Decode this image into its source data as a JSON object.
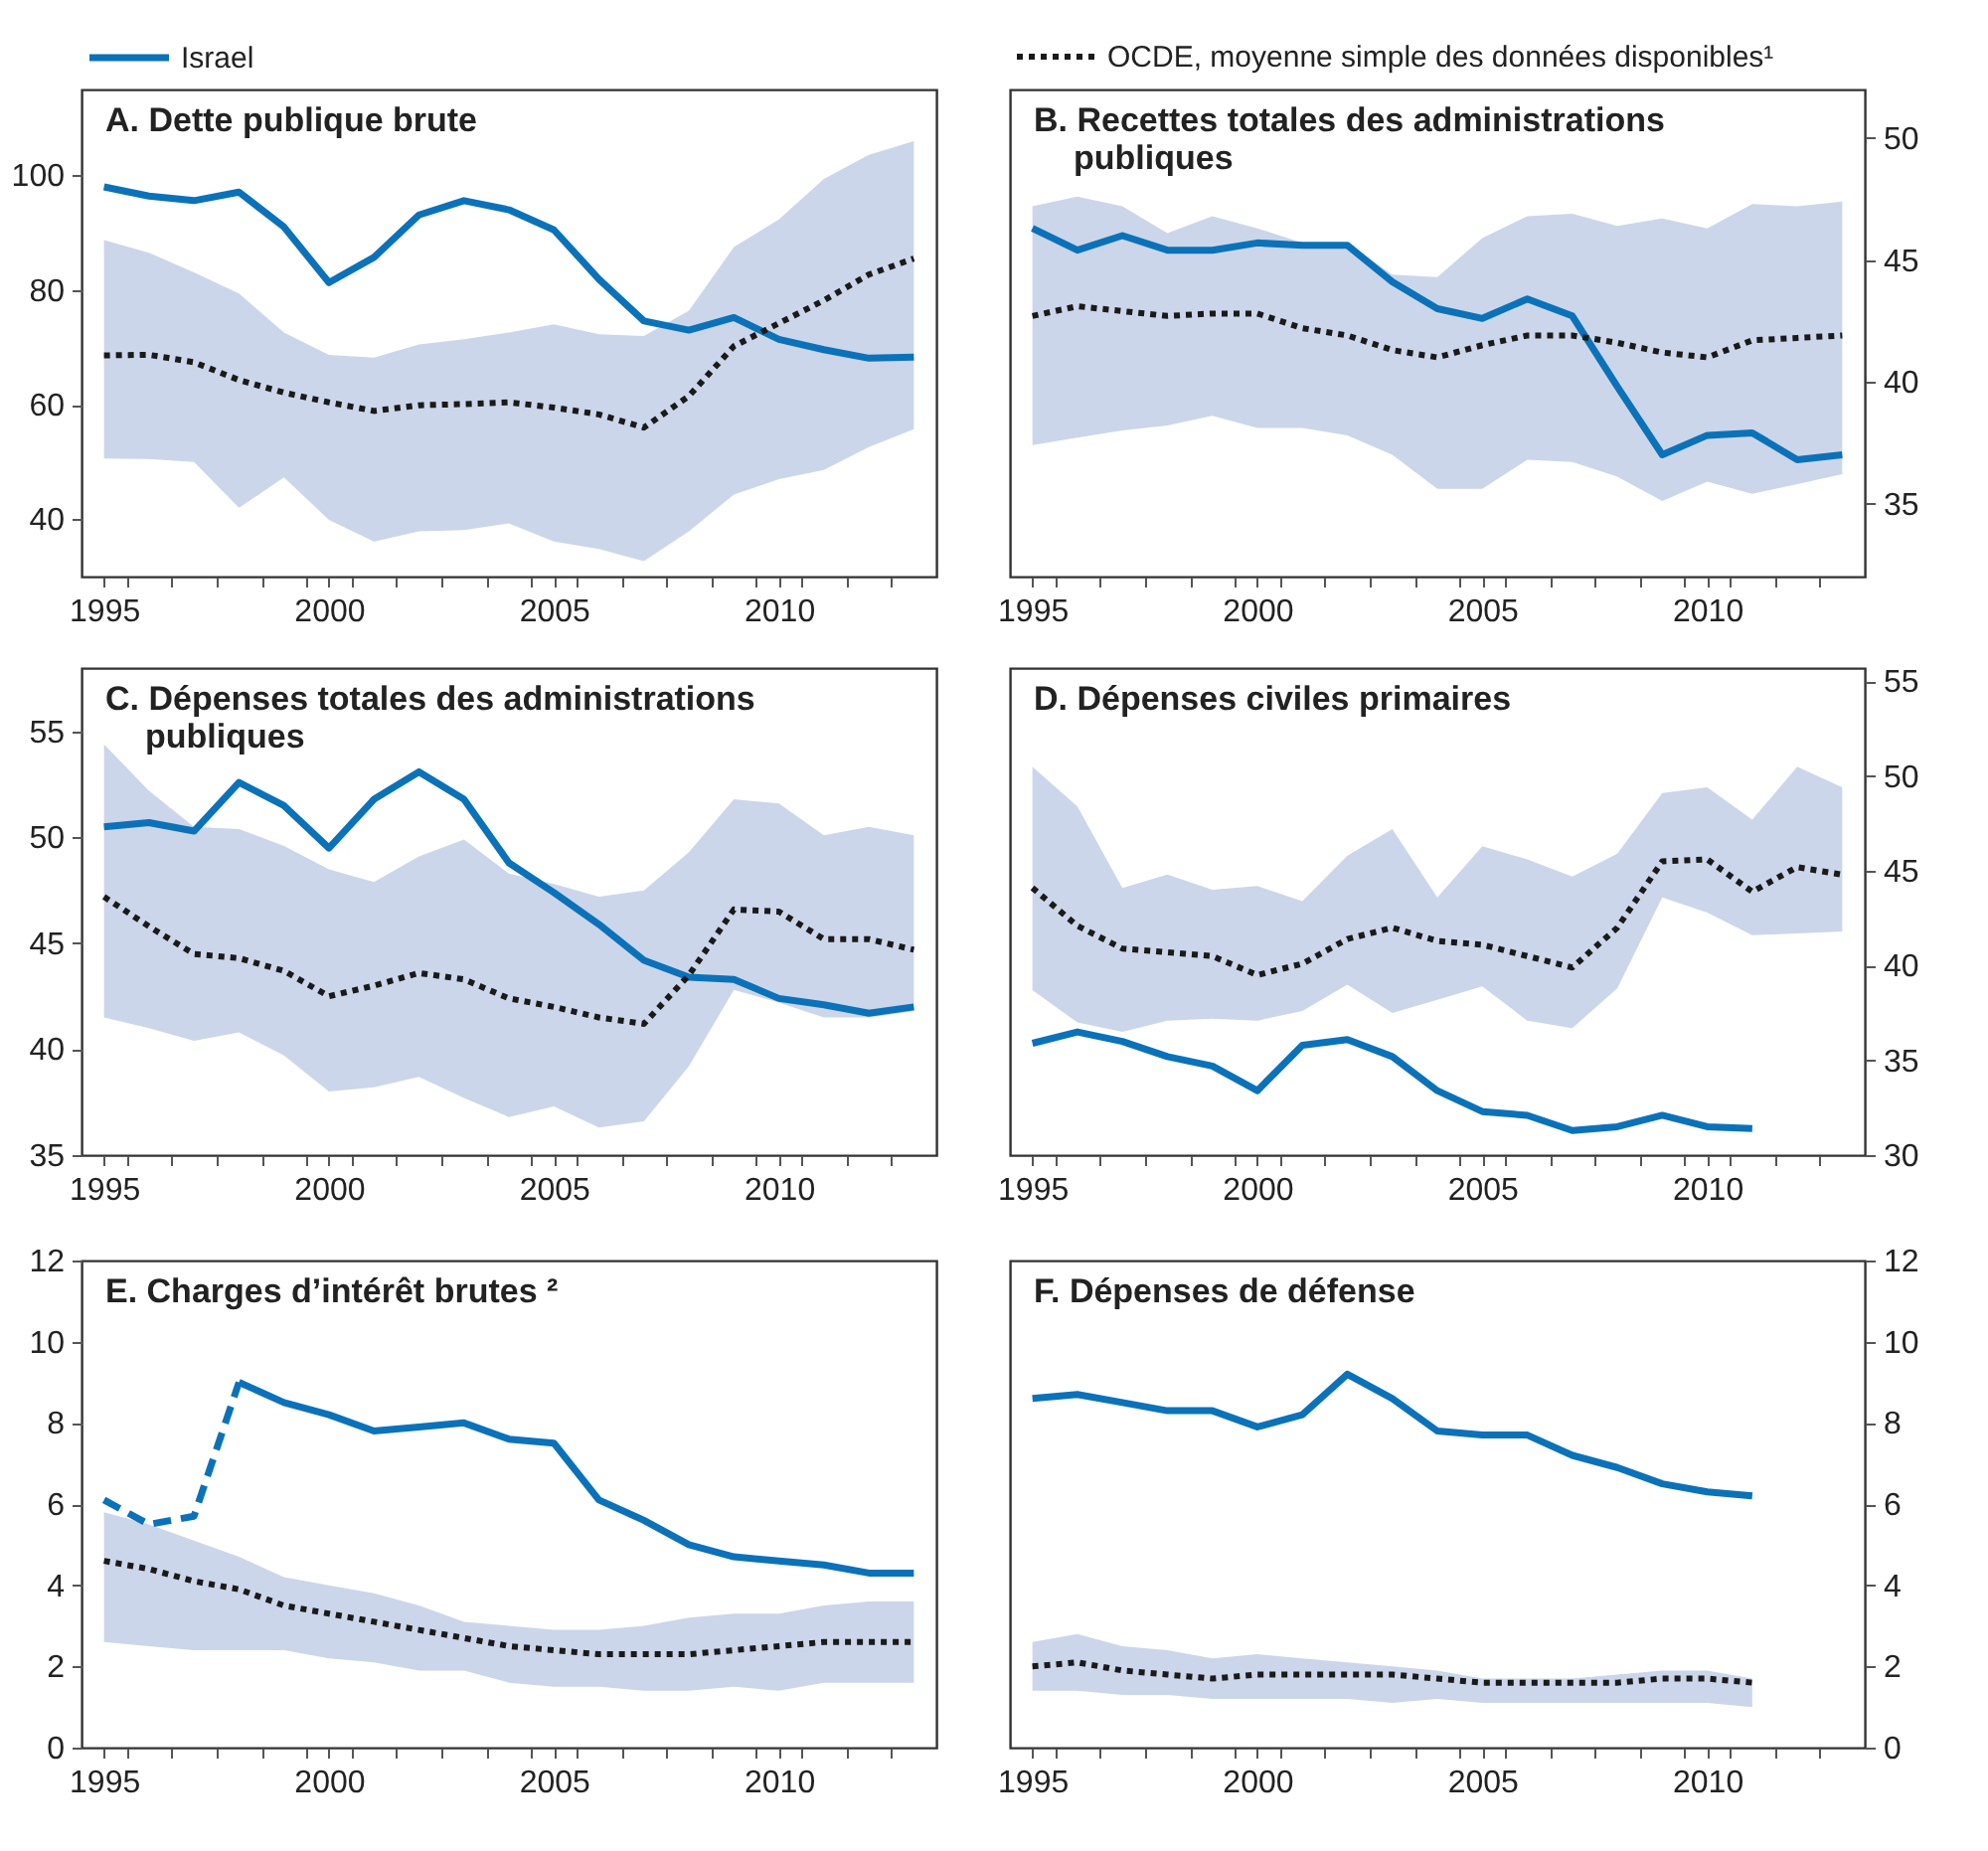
{
  "chart_data": [
    {
      "type": "line",
      "title": "A. Dette publique brute",
      "legend": "top",
      "x": [
        1995,
        1996,
        1997,
        1998,
        1999,
        2000,
        2001,
        2002,
        2003,
        2004,
        2005,
        2006,
        2007,
        2008,
        2009,
        2010,
        2011,
        2012,
        2013
      ],
      "xlim": [
        1994.5,
        2013.5
      ],
      "xticks": [
        1995,
        {
          "value": 1995.5,
          "label": null
        },
        {
          "value": 1996.5,
          "label": null
        },
        {
          "value": 1997.5,
          "label": null
        },
        {
          "value": 1998.5,
          "label": null
        },
        {
          "value": 1999.5,
          "label": null
        },
        2000,
        {
          "value": 2000.5,
          "label": null
        },
        {
          "value": 2001.5,
          "label": null
        },
        {
          "value": 2002.5,
          "label": null
        },
        {
          "value": 2003.5,
          "label": null
        },
        {
          "value": 2004.5,
          "label": null
        },
        2005,
        {
          "value": 2005.5,
          "label": null
        },
        {
          "value": 2006.5,
          "label": null
        },
        {
          "value": 2007.5,
          "label": null
        },
        {
          "value": 2008.5,
          "label": null
        },
        {
          "value": 2009.5,
          "label": null
        },
        2010,
        {
          "value": 2010.5,
          "label": null
        },
        {
          "value": 2011.5,
          "label": null
        },
        {
          "value": 2012.5,
          "label": null
        }
      ],
      "ylim": [
        30,
        115
      ],
      "yticks": [
        40,
        60,
        80,
        100
      ],
      "series": [
        {
          "name": "Israel",
          "color": "#0b72b9",
          "line_style": "solid",
          "values": [
            98,
            96.4,
            95.6,
            97.1,
            91,
            81.3,
            85.7,
            93.1,
            95.6,
            94,
            90.5,
            81.9,
            74.6,
            73,
            75.2,
            71.4,
            69.6,
            68.1,
            68.3
          ]
        },
        {
          "color": "#1a1a1a",
          "line_style": "dotted",
          "values": [
            68.6,
            68.7,
            67.4,
            64.3,
            62.1,
            60.4,
            58.9,
            59.9,
            60.1,
            60.4,
            59.5,
            58.3,
            56,
            61.5,
            70.2,
            74.2,
            78.2,
            82.7,
            85.5
          ],
          "lower": [
            50.6,
            50.5,
            50,
            42,
            47.3,
            39.9,
            36.1,
            37.9,
            38.1,
            39.3,
            36.1,
            34.8,
            32.7,
            37.9,
            44.3,
            47,
            48.6,
            52.6,
            55.7
          ],
          "upper": [
            88.7,
            86.5,
            83.1,
            79.4,
            72.6,
            68.7,
            68.2,
            70.5,
            71.4,
            72.6,
            74,
            72.3,
            72,
            76.4,
            87.5,
            92.3,
            99.4,
            103.6,
            106
          ]
        }
      ]
    },
    {
      "type": "line",
      "title": "B. Recettes totales des administrations publiques",
      "legend": "top",
      "x": [
        1995,
        1996,
        1997,
        1998,
        1999,
        2000,
        2001,
        2002,
        2003,
        2004,
        2005,
        2006,
        2007,
        2008,
        2009,
        2010,
        2011,
        2012,
        2013
      ],
      "xlim": [
        1994.5,
        2013.5
      ],
      "xticks": [
        1995,
        {
          "value": 1995.5,
          "label": null
        },
        {
          "value": 1996.5,
          "label": null
        },
        {
          "value": 1997.5,
          "label": null
        },
        {
          "value": 1998.5,
          "label": null
        },
        {
          "value": 1999.5,
          "label": null
        },
        2000,
        {
          "value": 2000.5,
          "label": null
        },
        {
          "value": 2001.5,
          "label": null
        },
        {
          "value": 2002.5,
          "label": null
        },
        {
          "value": 2003.5,
          "label": null
        },
        {
          "value": 2004.5,
          "label": null
        },
        2005,
        {
          "value": 2005.5,
          "label": null
        },
        {
          "value": 2006.5,
          "label": null
        },
        {
          "value": 2007.5,
          "label": null
        },
        {
          "value": 2008.5,
          "label": null
        },
        {
          "value": 2009.5,
          "label": null
        },
        2010,
        {
          "value": 2010.5,
          "label": null
        },
        {
          "value": 2011.5,
          "label": null
        },
        {
          "value": 2012.5,
          "label": null
        }
      ],
      "y2lim": [
        32,
        52
      ],
      "y2ticks": [
        35,
        40,
        45,
        50
      ],
      "series": [
        {
          "color": "#0b72b9",
          "line_style": "solid",
          "axis": "y2",
          "values": [
            46.3,
            45.4,
            46,
            45.4,
            45.4,
            45.7,
            45.6,
            45.6,
            44.1,
            43,
            42.6,
            43.4,
            42.7,
            39.8,
            37,
            37.8,
            37.9,
            36.8,
            37
          ]
        },
        {
          "name": "OCDE, moyenne simple des données disponibles¹",
          "color": "#1a1a1a",
          "line_style": "dotted",
          "axis": "y2",
          "values": [
            42.7,
            43.1,
            42.9,
            42.7,
            42.8,
            42.8,
            42.2,
            41.9,
            41.3,
            41,
            41.5,
            41.9,
            41.9,
            41.6,
            41.2,
            41,
            41.7,
            41.8,
            41.9
          ],
          "lower": [
            37.4,
            37.7,
            38,
            38.2,
            38.6,
            38.1,
            38.1,
            37.8,
            37,
            35.6,
            35.6,
            36.8,
            36.7,
            36.1,
            35.1,
            35.9,
            35.4,
            35.8,
            36.2
          ],
          "upper": [
            47.2,
            47.6,
            47.2,
            46.1,
            46.8,
            46.3,
            45.7,
            45.7,
            44.4,
            44.3,
            45.9,
            46.8,
            46.9,
            46.4,
            46.7,
            46.3,
            47.3,
            47.2,
            47.4
          ]
        }
      ]
    },
    {
      "type": "line",
      "title": "C. Dépenses totales des administrations publiques",
      "x": [
        1995,
        1996,
        1997,
        1998,
        1999,
        2000,
        2001,
        2002,
        2003,
        2004,
        2005,
        2006,
        2007,
        2008,
        2009,
        2010,
        2011,
        2012,
        2013
      ],
      "xlim": [
        1994.5,
        2013.5
      ],
      "xticks": [
        1995,
        {
          "value": 1995.5,
          "label": null
        },
        {
          "value": 1996.5,
          "label": null
        },
        {
          "value": 1997.5,
          "label": null
        },
        {
          "value": 1998.5,
          "label": null
        },
        {
          "value": 1999.5,
          "label": null
        },
        2000,
        {
          "value": 2000.5,
          "label": null
        },
        {
          "value": 2001.5,
          "label": null
        },
        {
          "value": 2002.5,
          "label": null
        },
        {
          "value": 2003.5,
          "label": null
        },
        {
          "value": 2004.5,
          "label": null
        },
        2005,
        {
          "value": 2005.5,
          "label": null
        },
        {
          "value": 2006.5,
          "label": null
        },
        {
          "value": 2007.5,
          "label": null
        },
        {
          "value": 2008.5,
          "label": null
        },
        {
          "value": 2009.5,
          "label": null
        },
        2010,
        {
          "value": 2010.5,
          "label": null
        },
        {
          "value": 2011.5,
          "label": null
        },
        {
          "value": 2012.5,
          "label": null
        }
      ],
      "ylim": [
        35,
        58
      ],
      "yticks": [
        35,
        40,
        45,
        50,
        55
      ],
      "series": [
        {
          "color": "#0b72b9",
          "line_style": "solid",
          "values": [
            50.5,
            50.7,
            50.3,
            52.6,
            51.5,
            49.5,
            51.8,
            53.1,
            51.8,
            48.8,
            47.4,
            45.9,
            44.2,
            43.4,
            43.3,
            42.4,
            42.1,
            41.7,
            42
          ]
        },
        {
          "color": "#1a1a1a",
          "line_style": "dotted",
          "values": [
            47.2,
            45.8,
            44.5,
            44.3,
            43.7,
            42.5,
            43,
            43.6,
            43.3,
            42.4,
            42,
            41.5,
            41.2,
            43.5,
            46.6,
            46.5,
            45.2,
            45.2,
            44.7
          ],
          "lower": [
            41.5,
            41,
            40.4,
            40.8,
            39.7,
            38,
            38.2,
            38.7,
            37.7,
            36.8,
            37.3,
            36.3,
            36.6,
            39.2,
            42.8,
            42.2,
            41.5,
            41.5,
            41.8
          ],
          "upper": [
            54.4,
            52.2,
            50.5,
            50.4,
            49.6,
            48.5,
            47.9,
            49.1,
            49.9,
            48.3,
            47.8,
            47.2,
            47.5,
            49.3,
            51.8,
            51.6,
            50.1,
            50.5,
            50.1
          ]
        }
      ]
    },
    {
      "type": "line",
      "title": "D. Dépenses civiles primaires",
      "x": [
        1995,
        1996,
        1997,
        1998,
        1999,
        2000,
        2001,
        2002,
        2003,
        2004,
        2005,
        2006,
        2007,
        2008,
        2009,
        2010,
        2011,
        2012,
        2013
      ],
      "xlim": [
        1994.5,
        2013.5
      ],
      "xticks": [
        1995,
        {
          "value": 1995.5,
          "label": null
        },
        {
          "value": 1996.5,
          "label": null
        },
        {
          "value": 1997.5,
          "label": null
        },
        {
          "value": 1998.5,
          "label": null
        },
        {
          "value": 1999.5,
          "label": null
        },
        2000,
        {
          "value": 2000.5,
          "label": null
        },
        {
          "value": 2001.5,
          "label": null
        },
        {
          "value": 2002.5,
          "label": null
        },
        {
          "value": 2003.5,
          "label": null
        },
        {
          "value": 2004.5,
          "label": null
        },
        2005,
        {
          "value": 2005.5,
          "label": null
        },
        {
          "value": 2006.5,
          "label": null
        },
        {
          "value": 2007.5,
          "label": null
        },
        {
          "value": 2008.5,
          "label": null
        },
        {
          "value": 2009.5,
          "label": null
        },
        2010,
        {
          "value": 2010.5,
          "label": null
        },
        {
          "value": 2011.5,
          "label": null
        },
        {
          "value": 2012.5,
          "label": null
        }
      ],
      "y2lim": [
        30,
        55.7
      ],
      "y2ticks": [
        30,
        35,
        40,
        45,
        50,
        55
      ],
      "series": [
        {
          "color": "#0b72b9",
          "line_style": "solid",
          "axis": "y2",
          "values": [
            35.9,
            36.5,
            36,
            35.2,
            34.7,
            33.4,
            35.8,
            36.1,
            35.2,
            33.4,
            32.3,
            32.1,
            31.3,
            31.5,
            32.1,
            31.5,
            31.4,
            null,
            null
          ]
        },
        {
          "color": "#1a1a1a",
          "line_style": "dotted",
          "axis": "y2",
          "values": [
            44.1,
            42.1,
            40.9,
            40.7,
            40.5,
            39.5,
            40.1,
            41.4,
            42,
            41.3,
            41.1,
            40.5,
            39.9,
            42,
            45.5,
            45.6,
            43.9,
            45.2,
            44.8
          ],
          "lower": [
            38.7,
            37,
            36.5,
            37.1,
            37.2,
            37.1,
            37.6,
            39,
            37.5,
            38.2,
            38.9,
            37.1,
            36.7,
            38.8,
            43.6,
            42.8,
            41.6,
            41.7,
            41.8
          ],
          "upper": [
            50.5,
            48.4,
            44.1,
            44.8,
            44,
            44.2,
            43.4,
            45.8,
            47.2,
            43.6,
            46.3,
            45.6,
            44.7,
            45.9,
            49.1,
            49.4,
            47.7,
            50.5,
            49.4
          ]
        }
      ]
    },
    {
      "type": "line",
      "title": "E. Charges d’intérêt brutes ²",
      "x": [
        1995,
        1996,
        1997,
        1998,
        1999,
        2000,
        2001,
        2002,
        2003,
        2004,
        2005,
        2006,
        2007,
        2008,
        2009,
        2010,
        2011,
        2012,
        2013
      ],
      "xlim": [
        1994.5,
        2013.5
      ],
      "xticks": [
        1995,
        {
          "value": 1995.5,
          "label": null
        },
        {
          "value": 1996.5,
          "label": null
        },
        {
          "value": 1997.5,
          "label": null
        },
        {
          "value": 1998.5,
          "label": null
        },
        {
          "value": 1999.5,
          "label": null
        },
        2000,
        {
          "value": 2000.5,
          "label": null
        },
        {
          "value": 2001.5,
          "label": null
        },
        {
          "value": 2002.5,
          "label": null
        },
        {
          "value": 2003.5,
          "label": null
        },
        {
          "value": 2004.5,
          "label": null
        },
        2005,
        {
          "value": 2005.5,
          "label": null
        },
        {
          "value": 2006.5,
          "label": null
        },
        {
          "value": 2007.5,
          "label": null
        },
        {
          "value": 2008.5,
          "label": null
        },
        {
          "value": 2009.5,
          "label": null
        },
        2010,
        {
          "value": 2010.5,
          "label": null
        },
        {
          "value": 2011.5,
          "label": null
        },
        {
          "value": 2012.5,
          "label": null
        }
      ],
      "ylim": [
        0,
        12
      ],
      "yticks": [
        0,
        2,
        4,
        6,
        8,
        10,
        12
      ],
      "series": [
        {
          "color": "#0b72b9",
          "line_style": "dashed",
          "values": [
            6.1,
            5.5,
            5.7,
            9.0,
            null,
            null,
            null,
            null,
            null,
            null,
            null,
            null,
            null,
            null,
            null,
            null,
            null,
            null,
            null
          ]
        },
        {
          "color": "#0b72b9",
          "line_style": "solid",
          "values": [
            null,
            null,
            null,
            9.0,
            8.5,
            8.2,
            7.8,
            7.9,
            8.0,
            7.6,
            7.5,
            6.1,
            5.6,
            5.0,
            4.7,
            4.6,
            4.5,
            4.3,
            4.3
          ]
        },
        {
          "color": "#1a1a1a",
          "line_style": "dotted",
          "values": [
            4.6,
            4.4,
            4.1,
            3.9,
            3.5,
            3.3,
            3.1,
            2.9,
            2.7,
            2.5,
            2.4,
            2.3,
            2.3,
            2.3,
            2.4,
            2.5,
            2.6,
            2.6,
            2.6
          ],
          "lower": [
            2.6,
            2.5,
            2.4,
            2.4,
            2.4,
            2.2,
            2.1,
            1.9,
            1.9,
            1.6,
            1.5,
            1.5,
            1.4,
            1.4,
            1.5,
            1.4,
            1.6,
            1.6,
            1.6
          ],
          "upper": [
            5.8,
            5.5,
            5.1,
            4.7,
            4.2,
            4.0,
            3.8,
            3.5,
            3.1,
            3.0,
            2.9,
            2.9,
            3.0,
            3.2,
            3.3,
            3.3,
            3.5,
            3.6,
            3.6
          ]
        }
      ]
    },
    {
      "type": "line",
      "title": "F. Dépenses de défense",
      "x": [
        1995,
        1996,
        1997,
        1998,
        1999,
        2000,
        2001,
        2002,
        2003,
        2004,
        2005,
        2006,
        2007,
        2008,
        2009,
        2010,
        2011
      ],
      "xlim": [
        1994.5,
        2013.5
      ],
      "xticks": [
        1995,
        {
          "value": 1995.5,
          "label": null
        },
        {
          "value": 1996.5,
          "label": null
        },
        {
          "value": 1997.5,
          "label": null
        },
        {
          "value": 1998.5,
          "label": null
        },
        {
          "value": 1999.5,
          "label": null
        },
        2000,
        {
          "value": 2000.5,
          "label": null
        },
        {
          "value": 2001.5,
          "label": null
        },
        {
          "value": 2002.5,
          "label": null
        },
        {
          "value": 2003.5,
          "label": null
        },
        {
          "value": 2004.5,
          "label": null
        },
        2005,
        {
          "value": 2005.5,
          "label": null
        },
        {
          "value": 2006.5,
          "label": null
        },
        {
          "value": 2007.5,
          "label": null
        },
        {
          "value": 2008.5,
          "label": null
        },
        {
          "value": 2009.5,
          "label": null
        },
        2010,
        {
          "value": 2010.5,
          "label": null
        },
        {
          "value": 2011.5,
          "label": null
        },
        {
          "value": 2012.5,
          "label": null
        }
      ],
      "y2lim": [
        0,
        12
      ],
      "y2ticks": [
        0,
        2,
        4,
        6,
        8,
        10,
        12
      ],
      "series": [
        {
          "color": "#0b72b9",
          "line_style": "solid",
          "axis": "y2",
          "values": [
            8.6,
            8.7,
            8.5,
            8.3,
            8.3,
            7.9,
            8.2,
            9.2,
            8.6,
            7.8,
            7.7,
            7.7,
            7.2,
            6.9,
            6.5,
            6.3,
            6.2
          ]
        },
        {
          "color": "#1a1a1a",
          "line_style": "dotted",
          "axis": "y2",
          "values": [
            2.0,
            2.1,
            1.9,
            1.8,
            1.7,
            1.8,
            1.8,
            1.8,
            1.8,
            1.7,
            1.6,
            1.6,
            1.6,
            1.6,
            1.7,
            1.7,
            1.6
          ],
          "lower": [
            1.4,
            1.4,
            1.3,
            1.3,
            1.2,
            1.2,
            1.2,
            1.2,
            1.1,
            1.2,
            1.1,
            1.1,
            1.1,
            1.1,
            1.1,
            1.1,
            1.0
          ],
          "upper": [
            2.6,
            2.8,
            2.5,
            2.4,
            2.2,
            2.3,
            2.2,
            2.1,
            2.0,
            1.9,
            1.7,
            1.7,
            1.7,
            1.8,
            1.9,
            1.9,
            1.7
          ]
        }
      ]
    }
  ]
}
